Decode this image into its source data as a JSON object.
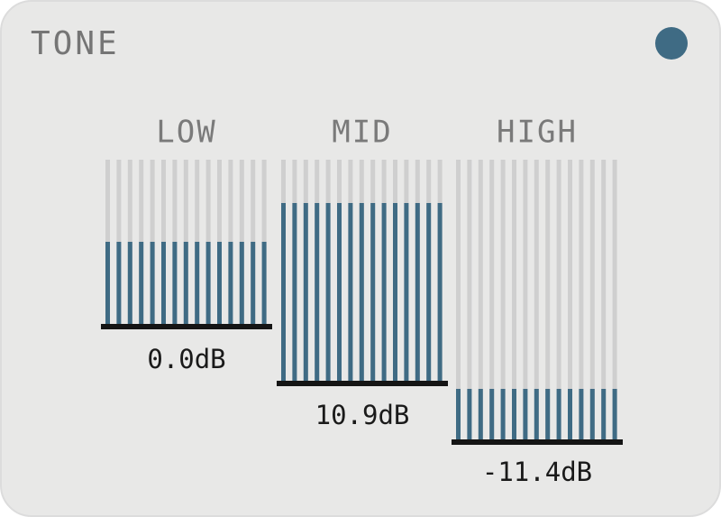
{
  "header": {
    "title": "TONE"
  },
  "bands": [
    {
      "label": "LOW",
      "value": "0.0dB"
    },
    {
      "label": "MID",
      "value": "10.9dB"
    },
    {
      "label": "HIGH",
      "value": "-11.4dB"
    }
  ]
}
